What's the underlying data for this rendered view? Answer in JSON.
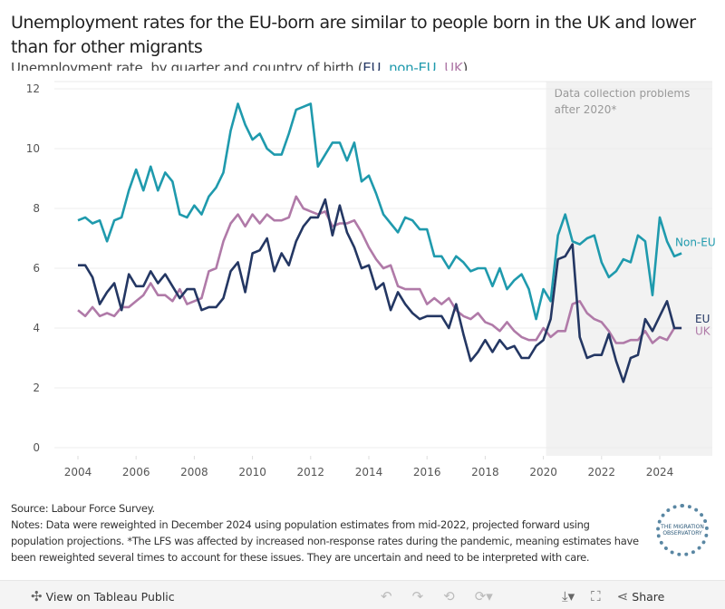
{
  "header": {
    "title": "Unemployment rates for the EU-born are similar to people born in the UK and lower than for other migrants",
    "subtitle_prefix": "Unemployment rate, by quarter and country of birth (",
    "subtitle_eu": "EU",
    "subtitle_sep1": ", ",
    "subtitle_non": "non-EU",
    "subtitle_sep2": ", ",
    "subtitle_uk": "UK",
    "subtitle_suffix": ")"
  },
  "chart_data": {
    "type": "line",
    "title": "",
    "xlabel": "",
    "ylabel": "",
    "x_start": "2004 Q1",
    "x_step": "quarter",
    "xlim": [
      2003.5,
      2025.5
    ],
    "ylim": [
      0,
      12
    ],
    "x_ticks": [
      "2004",
      "2006",
      "2008",
      "2010",
      "2012",
      "2014",
      "2016",
      "2018",
      "2020",
      "2022",
      "2024"
    ],
    "y_ticks": [
      "0",
      "2",
      "4",
      "6",
      "8",
      "10",
      "12"
    ],
    "grid": true,
    "annotation": {
      "text_line1": "Data collection problems",
      "text_line2": "after 2020*",
      "from": 2020,
      "color": "#f2f2f2"
    },
    "series": [
      {
        "name": "Non-EU",
        "color": "#1f9aad",
        "values": [
          7.6,
          7.7,
          7.5,
          7.6,
          6.9,
          7.6,
          7.7,
          8.6,
          9.3,
          8.6,
          9.4,
          8.6,
          9.2,
          8.9,
          7.8,
          7.7,
          8.1,
          7.8,
          8.4,
          8.7,
          9.2,
          10.6,
          11.5,
          10.8,
          10.3,
          10.5,
          10.0,
          9.8,
          9.8,
          10.5,
          11.3,
          11.4,
          11.5,
          9.4,
          9.8,
          10.2,
          10.2,
          9.6,
          10.2,
          8.9,
          9.1,
          8.5,
          7.8,
          7.5,
          7.2,
          7.7,
          7.6,
          7.3,
          7.3,
          6.4,
          6.4,
          6.0,
          6.4,
          6.2,
          5.9,
          6.0,
          6.0,
          5.4,
          6.0,
          5.3,
          5.6,
          5.8,
          5.3,
          4.3,
          5.3,
          4.9,
          7.1,
          7.8,
          6.9,
          6.8,
          7.0,
          7.1,
          6.2,
          5.7,
          5.9,
          6.3,
          6.2,
          7.1,
          6.9,
          5.1,
          7.7,
          6.9,
          6.4,
          6.5
        ]
      },
      {
        "name": "EU",
        "color": "#243763",
        "values": [
          6.1,
          6.1,
          5.7,
          4.8,
          5.2,
          5.5,
          4.6,
          5.8,
          5.4,
          5.4,
          5.9,
          5.5,
          5.8,
          5.4,
          5.0,
          5.3,
          5.3,
          4.6,
          4.7,
          4.7,
          5.0,
          5.9,
          6.2,
          5.2,
          6.5,
          6.6,
          7.0,
          5.9,
          6.5,
          6.1,
          6.9,
          7.4,
          7.7,
          7.7,
          8.3,
          7.1,
          8.1,
          7.2,
          6.7,
          6.0,
          6.1,
          5.3,
          5.5,
          4.6,
          5.2,
          4.8,
          4.5,
          4.3,
          4.4,
          4.4,
          4.4,
          4.0,
          4.8,
          3.8,
          2.9,
          3.2,
          3.6,
          3.2,
          3.6,
          3.3,
          3.4,
          3.0,
          3.0,
          3.4,
          3.6,
          4.3,
          6.3,
          6.4,
          6.8,
          3.7,
          3.0,
          3.1,
          3.1,
          3.8,
          2.9,
          2.2,
          3.0,
          3.1,
          4.3,
          3.9,
          4.4,
          4.9,
          4.0,
          4.0
        ]
      },
      {
        "name": "UK",
        "color": "#b07aa8",
        "values": [
          4.6,
          4.4,
          4.7,
          4.4,
          4.5,
          4.4,
          4.7,
          4.7,
          4.9,
          5.1,
          5.5,
          5.1,
          5.1,
          4.9,
          5.3,
          4.8,
          4.9,
          5.0,
          5.9,
          6.0,
          6.9,
          7.5,
          7.8,
          7.4,
          7.8,
          7.5,
          7.8,
          7.6,
          7.6,
          7.7,
          8.4,
          8.0,
          7.9,
          7.8,
          7.9,
          7.4,
          7.5,
          7.5,
          7.6,
          7.2,
          6.7,
          6.3,
          6.0,
          6.1,
          5.4,
          5.3,
          5.3,
          5.3,
          4.8,
          5.0,
          4.8,
          5.0,
          4.6,
          4.4,
          4.3,
          4.5,
          4.2,
          4.1,
          3.9,
          4.2,
          3.9,
          3.7,
          3.6,
          3.6,
          4.0,
          3.7,
          3.9,
          3.9,
          4.8,
          4.9,
          4.5,
          4.3,
          4.2,
          3.9,
          3.5,
          3.5,
          3.6,
          3.6,
          3.9,
          3.5,
          3.7,
          3.6,
          4.0,
          4.0
        ]
      }
    ]
  },
  "footer": {
    "source": "Source: Labour Force Survey.",
    "notes": "Notes: Data were reweighted in December 2024 using population estimates from mid-2022, projected forward using population projections. *The LFS was affected by increased non-response rates during the pandemic, meaning estimates have been reweighted several times to account for these issues. They are uncertain and need to be interpreted with care.",
    "logo_text": "THE MIGRATION OBSERVATORY"
  },
  "toolbar": {
    "view_label": "View on Tableau Public",
    "share_label": "Share",
    "icons": [
      "tableau-icon",
      "undo-icon",
      "redo-icon",
      "revert-icon",
      "refresh-icon",
      "download-icon",
      "fullscreen-icon",
      "share-icon"
    ]
  }
}
